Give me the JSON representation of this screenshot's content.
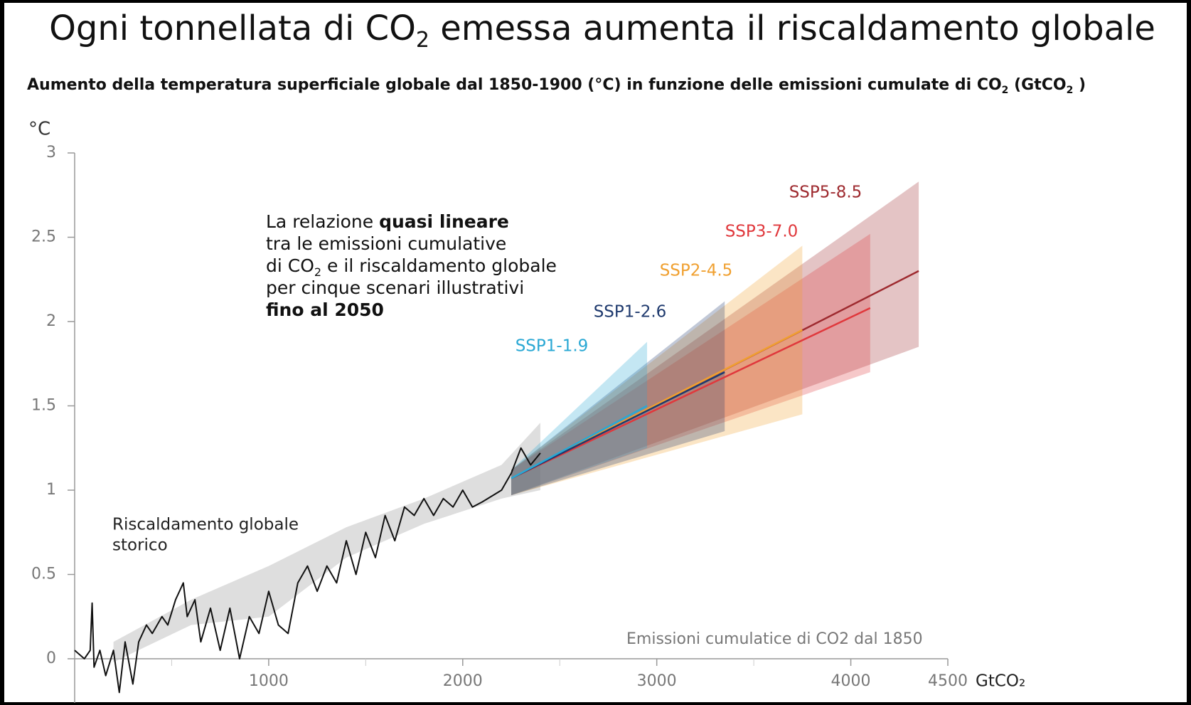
{
  "chart_data": {
    "type": "line",
    "title": [
      "Ogni tonnellata di CO",
      "2",
      " emessa aumenta il riscaldamento globale"
    ],
    "subtitle": [
      "Aumento della temperatura superficiale globale dal 1850-1900 (°C) in funzione delle emissioni cumulate di CO",
      "2",
      " (GtCO",
      "2",
      " )"
    ],
    "y_unit": "°C",
    "x_label": "Emissioni cumulatice di CO2 dal 1850",
    "x_unit": "GtCO₂",
    "xlim": [
      0,
      4500
    ],
    "xticks": [
      1000,
      2000,
      3000,
      4000,
      4500
    ],
    "ylim": [
      0,
      3
    ],
    "yticks": [
      0,
      0.5,
      1,
      1.5,
      2,
      2.5,
      3
    ],
    "annotation": {
      "line1": [
        "La relazione ",
        "quasi lineare"
      ],
      "line2": "tra le emissioni cumulative",
      "line3": [
        "di CO",
        "2",
        " e il riscaldamento globale"
      ],
      "line4": "per cinque scenari illustrativi",
      "line5": "fino al 2050"
    },
    "history": {
      "label": [
        "Riscaldamento globale",
        "storico"
      ],
      "color": "#111111",
      "x": [
        0,
        50,
        80,
        90,
        100,
        130,
        160,
        200,
        230,
        260,
        300,
        330,
        370,
        400,
        450,
        480,
        520,
        560,
        580,
        620,
        650,
        700,
        750,
        800,
        850,
        900,
        950,
        1000,
        1050,
        1100,
        1150,
        1200,
        1250,
        1300,
        1350,
        1400,
        1450,
        1500,
        1550,
        1600,
        1650,
        1700,
        1750,
        1800,
        1850,
        1900,
        1950,
        2000,
        2050,
        2100,
        2200,
        2250,
        2300,
        2350,
        2400
      ],
      "values": [
        0.05,
        0.0,
        0.05,
        0.33,
        -0.05,
        0.05,
        -0.1,
        0.05,
        -0.2,
        0.1,
        -0.15,
        0.1,
        0.2,
        0.15,
        0.25,
        0.2,
        0.35,
        0.45,
        0.25,
        0.35,
        0.1,
        0.3,
        0.05,
        0.3,
        0.0,
        0.25,
        0.15,
        0.4,
        0.2,
        0.15,
        0.45,
        0.55,
        0.4,
        0.55,
        0.45,
        0.7,
        0.5,
        0.75,
        0.6,
        0.85,
        0.7,
        0.9,
        0.85,
        0.95,
        0.85,
        0.95,
        0.9,
        1.0,
        0.9,
        0.93,
        1.0,
        1.1,
        1.25,
        1.15,
        1.22
      ],
      "band_color": "#c8c8c8",
      "band_x": [
        200,
        600,
        1000,
        1400,
        1800,
        2200,
        2400
      ],
      "band_lower": [
        -0.02,
        0.2,
        0.25,
        0.6,
        0.8,
        0.95,
        1.0
      ],
      "band_upper": [
        0.1,
        0.35,
        0.55,
        0.78,
        0.95,
        1.15,
        1.4
      ]
    },
    "series": [
      {
        "name": "SSP5-8.5",
        "color": "#9e2a2f",
        "x": [
          2250,
          4350
        ],
        "values": [
          1.07,
          2.3
        ],
        "lower": [
          0.97,
          1.85
        ],
        "upper": [
          1.12,
          2.83
        ]
      },
      {
        "name": "SSP3-7.0",
        "color": "#e0383c",
        "x": [
          2250,
          4100
        ],
        "values": [
          1.07,
          2.08
        ],
        "lower": [
          0.97,
          1.7
        ],
        "upper": [
          1.12,
          2.52
        ]
      },
      {
        "name": "SSP2-4.5",
        "color": "#f0a030",
        "x": [
          2250,
          3750
        ],
        "values": [
          1.07,
          1.95
        ],
        "lower": [
          0.97,
          1.45
        ],
        "upper": [
          1.12,
          2.45
        ]
      },
      {
        "name": "SSP1-2.6",
        "color": "#1f3a6e",
        "x": [
          2250,
          3350
        ],
        "values": [
          1.07,
          1.7
        ],
        "lower": [
          0.97,
          1.35
        ],
        "upper": [
          1.12,
          2.12
        ]
      },
      {
        "name": "SSP1-1.9",
        "color": "#2aa8d4",
        "x": [
          2250,
          2950
        ],
        "values": [
          1.07,
          1.5
        ],
        "lower": [
          0.97,
          1.25
        ],
        "upper": [
          1.12,
          1.88
        ]
      }
    ]
  }
}
